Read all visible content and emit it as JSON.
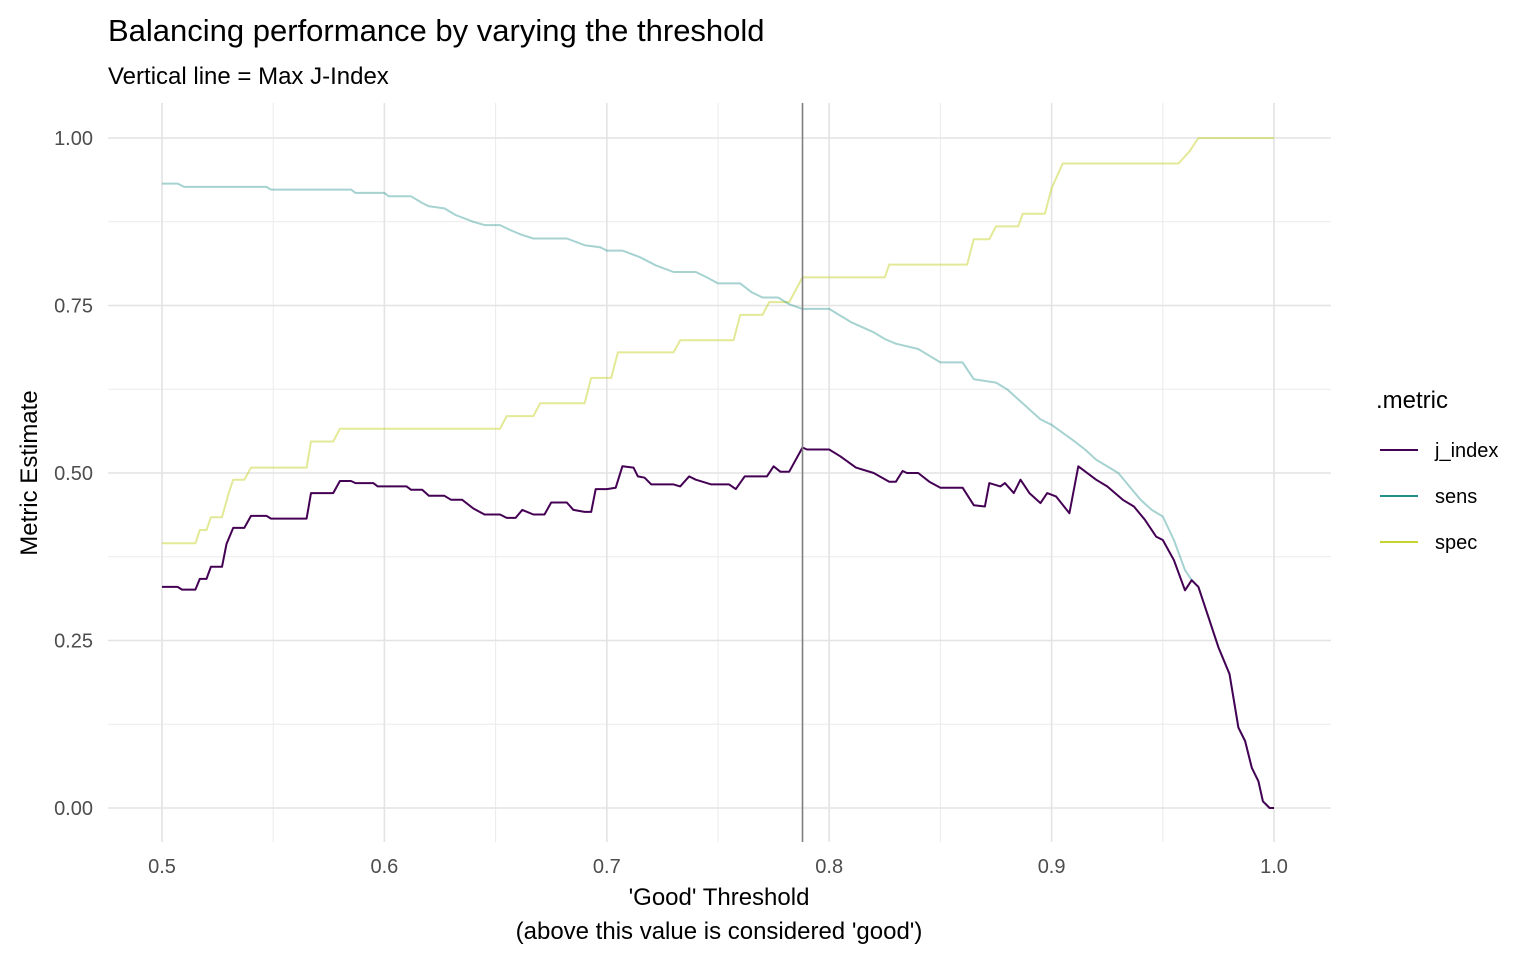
{
  "chart_data": {
    "type": "line",
    "title": "Balancing performance by varying the threshold",
    "subtitle": "Vertical line = Max J-Index",
    "xlabel": "'Good' Threshold",
    "xlabel_line2": "(above this value is considered 'good')",
    "ylabel": "Metric Estimate",
    "xlim": [
      0.5,
      1.0
    ],
    "ylim": [
      0.0,
      1.0
    ],
    "x_ticks": [
      "0.5",
      "0.6",
      "0.7",
      "0.8",
      "0.9",
      "1.0"
    ],
    "y_ticks": [
      "0.00",
      "0.25",
      "0.50",
      "0.75",
      "1.00"
    ],
    "grid": true,
    "legend_title": ".metric",
    "legend_position": "right",
    "vline_x": 0.788,
    "vline_color": "#7f7f7f",
    "series": [
      {
        "name": "j_index",
        "color": "#440154",
        "opacity": 1.0,
        "points": [
          [
            0.5,
            0.33
          ],
          [
            0.507,
            0.33
          ],
          [
            0.509,
            0.326
          ],
          [
            0.515,
            0.326
          ],
          [
            0.517,
            0.342
          ],
          [
            0.52,
            0.342
          ],
          [
            0.522,
            0.36
          ],
          [
            0.527,
            0.36
          ],
          [
            0.529,
            0.394
          ],
          [
            0.532,
            0.418
          ],
          [
            0.537,
            0.418
          ],
          [
            0.54,
            0.436
          ],
          [
            0.547,
            0.436
          ],
          [
            0.549,
            0.432
          ],
          [
            0.565,
            0.432
          ],
          [
            0.567,
            0.47
          ],
          [
            0.577,
            0.47
          ],
          [
            0.58,
            0.488
          ],
          [
            0.585,
            0.488
          ],
          [
            0.587,
            0.485
          ],
          [
            0.595,
            0.485
          ],
          [
            0.597,
            0.48
          ],
          [
            0.61,
            0.48
          ],
          [
            0.612,
            0.475
          ],
          [
            0.617,
            0.475
          ],
          [
            0.62,
            0.466
          ],
          [
            0.627,
            0.466
          ],
          [
            0.63,
            0.46
          ],
          [
            0.635,
            0.46
          ],
          [
            0.64,
            0.447
          ],
          [
            0.645,
            0.438
          ],
          [
            0.652,
            0.438
          ],
          [
            0.655,
            0.433
          ],
          [
            0.659,
            0.433
          ],
          [
            0.662,
            0.445
          ],
          [
            0.667,
            0.438
          ],
          [
            0.672,
            0.438
          ],
          [
            0.675,
            0.456
          ],
          [
            0.682,
            0.456
          ],
          [
            0.685,
            0.445
          ],
          [
            0.69,
            0.442
          ],
          [
            0.693,
            0.442
          ],
          [
            0.695,
            0.476
          ],
          [
            0.7,
            0.476
          ],
          [
            0.704,
            0.478
          ],
          [
            0.707,
            0.51
          ],
          [
            0.712,
            0.508
          ],
          [
            0.714,
            0.495
          ],
          [
            0.717,
            0.493
          ],
          [
            0.72,
            0.483
          ],
          [
            0.73,
            0.483
          ],
          [
            0.733,
            0.48
          ],
          [
            0.737,
            0.495
          ],
          [
            0.74,
            0.49
          ],
          [
            0.743,
            0.487
          ],
          [
            0.747,
            0.483
          ],
          [
            0.755,
            0.483
          ],
          [
            0.758,
            0.476
          ],
          [
            0.762,
            0.495
          ],
          [
            0.772,
            0.495
          ],
          [
            0.775,
            0.51
          ],
          [
            0.778,
            0.502
          ],
          [
            0.782,
            0.502
          ],
          [
            0.788,
            0.538
          ],
          [
            0.79,
            0.535
          ],
          [
            0.8,
            0.535
          ],
          [
            0.805,
            0.525
          ],
          [
            0.812,
            0.508
          ],
          [
            0.82,
            0.5
          ],
          [
            0.827,
            0.487
          ],
          [
            0.83,
            0.487
          ],
          [
            0.833,
            0.503
          ],
          [
            0.835,
            0.5
          ],
          [
            0.84,
            0.5
          ],
          [
            0.845,
            0.487
          ],
          [
            0.85,
            0.478
          ],
          [
            0.86,
            0.478
          ],
          [
            0.865,
            0.452
          ],
          [
            0.87,
            0.45
          ],
          [
            0.872,
            0.485
          ],
          [
            0.877,
            0.48
          ],
          [
            0.879,
            0.485
          ],
          [
            0.883,
            0.47
          ],
          [
            0.886,
            0.49
          ],
          [
            0.89,
            0.47
          ],
          [
            0.895,
            0.455
          ],
          [
            0.898,
            0.47
          ],
          [
            0.902,
            0.465
          ],
          [
            0.908,
            0.44
          ],
          [
            0.912,
            0.51
          ],
          [
            0.92,
            0.49
          ],
          [
            0.925,
            0.48
          ],
          [
            0.932,
            0.46
          ],
          [
            0.937,
            0.45
          ],
          [
            0.942,
            0.43
          ],
          [
            0.947,
            0.405
          ],
          [
            0.95,
            0.4
          ],
          [
            0.955,
            0.37
          ],
          [
            0.96,
            0.325
          ],
          [
            0.963,
            0.34
          ],
          [
            0.966,
            0.33
          ],
          [
            0.97,
            0.29
          ],
          [
            0.975,
            0.24
          ],
          [
            0.98,
            0.2
          ],
          [
            0.984,
            0.12
          ],
          [
            0.987,
            0.1
          ],
          [
            0.99,
            0.06
          ],
          [
            0.993,
            0.04
          ],
          [
            0.995,
            0.01
          ],
          [
            0.998,
            0.0
          ],
          [
            1.0,
            0.0
          ]
        ]
      },
      {
        "name": "sens",
        "color": "#21908c",
        "opacity": 0.4,
        "points": [
          [
            0.5,
            0.932
          ],
          [
            0.507,
            0.932
          ],
          [
            0.51,
            0.927
          ],
          [
            0.547,
            0.927
          ],
          [
            0.549,
            0.923
          ],
          [
            0.585,
            0.923
          ],
          [
            0.587,
            0.918
          ],
          [
            0.6,
            0.918
          ],
          [
            0.602,
            0.913
          ],
          [
            0.612,
            0.913
          ],
          [
            0.617,
            0.903
          ],
          [
            0.62,
            0.898
          ],
          [
            0.627,
            0.895
          ],
          [
            0.632,
            0.885
          ],
          [
            0.64,
            0.875
          ],
          [
            0.645,
            0.87
          ],
          [
            0.652,
            0.87
          ],
          [
            0.657,
            0.862
          ],
          [
            0.662,
            0.855
          ],
          [
            0.667,
            0.85
          ],
          [
            0.682,
            0.85
          ],
          [
            0.69,
            0.84
          ],
          [
            0.697,
            0.837
          ],
          [
            0.7,
            0.832
          ],
          [
            0.707,
            0.832
          ],
          [
            0.715,
            0.822
          ],
          [
            0.722,
            0.81
          ],
          [
            0.73,
            0.8
          ],
          [
            0.74,
            0.8
          ],
          [
            0.745,
            0.792
          ],
          [
            0.75,
            0.783
          ],
          [
            0.76,
            0.783
          ],
          [
            0.765,
            0.77
          ],
          [
            0.77,
            0.762
          ],
          [
            0.777,
            0.762
          ],
          [
            0.782,
            0.752
          ],
          [
            0.788,
            0.745
          ],
          [
            0.8,
            0.745
          ],
          [
            0.805,
            0.735
          ],
          [
            0.81,
            0.725
          ],
          [
            0.82,
            0.71
          ],
          [
            0.825,
            0.7
          ],
          [
            0.83,
            0.693
          ],
          [
            0.84,
            0.685
          ],
          [
            0.845,
            0.675
          ],
          [
            0.85,
            0.665
          ],
          [
            0.86,
            0.665
          ],
          [
            0.865,
            0.64
          ],
          [
            0.875,
            0.635
          ],
          [
            0.88,
            0.625
          ],
          [
            0.885,
            0.61
          ],
          [
            0.89,
            0.595
          ],
          [
            0.895,
            0.58
          ],
          [
            0.9,
            0.572
          ],
          [
            0.905,
            0.56
          ],
          [
            0.91,
            0.548
          ],
          [
            0.915,
            0.535
          ],
          [
            0.92,
            0.52
          ],
          [
            0.93,
            0.5
          ],
          [
            0.935,
            0.48
          ],
          [
            0.94,
            0.46
          ],
          [
            0.945,
            0.445
          ],
          [
            0.95,
            0.435
          ],
          [
            0.955,
            0.4
          ],
          [
            0.96,
            0.355
          ],
          [
            0.963,
            0.34
          ],
          [
            0.966,
            0.33
          ],
          [
            0.97,
            0.29
          ],
          [
            0.975,
            0.24
          ],
          [
            0.98,
            0.2
          ],
          [
            0.984,
            0.12
          ],
          [
            0.987,
            0.1
          ],
          [
            0.99,
            0.06
          ],
          [
            0.993,
            0.04
          ],
          [
            0.995,
            0.01
          ],
          [
            0.998,
            0.0
          ],
          [
            1.0,
            0.0
          ]
        ]
      },
      {
        "name": "spec",
        "color": "#c8d42e",
        "opacity": 0.5,
        "points": [
          [
            0.5,
            0.395
          ],
          [
            0.515,
            0.395
          ],
          [
            0.517,
            0.415
          ],
          [
            0.52,
            0.415
          ],
          [
            0.522,
            0.434
          ],
          [
            0.527,
            0.434
          ],
          [
            0.53,
            0.47
          ],
          [
            0.532,
            0.49
          ],
          [
            0.537,
            0.49
          ],
          [
            0.54,
            0.508
          ],
          [
            0.565,
            0.508
          ],
          [
            0.567,
            0.547
          ],
          [
            0.577,
            0.547
          ],
          [
            0.58,
            0.566
          ],
          [
            0.64,
            0.566
          ],
          [
            0.652,
            0.566
          ],
          [
            0.655,
            0.585
          ],
          [
            0.667,
            0.585
          ],
          [
            0.67,
            0.604
          ],
          [
            0.69,
            0.604
          ],
          [
            0.693,
            0.642
          ],
          [
            0.702,
            0.642
          ],
          [
            0.705,
            0.68
          ],
          [
            0.73,
            0.68
          ],
          [
            0.733,
            0.698
          ],
          [
            0.757,
            0.698
          ],
          [
            0.76,
            0.736
          ],
          [
            0.77,
            0.736
          ],
          [
            0.773,
            0.755
          ],
          [
            0.782,
            0.755
          ],
          [
            0.788,
            0.792
          ],
          [
            0.825,
            0.792
          ],
          [
            0.827,
            0.811
          ],
          [
            0.862,
            0.811
          ],
          [
            0.865,
            0.849
          ],
          [
            0.872,
            0.849
          ],
          [
            0.875,
            0.868
          ],
          [
            0.885,
            0.868
          ],
          [
            0.887,
            0.887
          ],
          [
            0.897,
            0.887
          ],
          [
            0.9,
            0.925
          ],
          [
            0.905,
            0.962
          ],
          [
            0.957,
            0.962
          ],
          [
            0.962,
            0.98
          ],
          [
            0.966,
            1.0
          ],
          [
            1.0,
            1.0
          ]
        ]
      }
    ]
  }
}
